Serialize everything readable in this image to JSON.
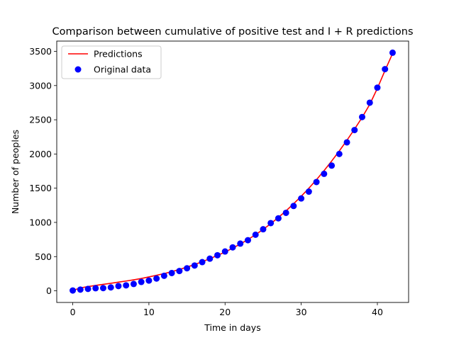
{
  "chart_data": {
    "type": "line+scatter",
    "title": "Comparison between cumulative of positive test and I + R predictions",
    "xlabel": "Time in days",
    "ylabel": "Number of peoples",
    "xlim": [
      -2.1,
      44.1
    ],
    "ylim": [
      -170,
      3650
    ],
    "xticks": [
      0,
      10,
      20,
      30,
      40
    ],
    "yticks": [
      0,
      500,
      1000,
      1500,
      2000,
      2500,
      3000,
      3500
    ],
    "legend": {
      "placement": "top-left",
      "entries": [
        "Predictions",
        "Original data"
      ]
    },
    "grid": false,
    "series": [
      {
        "name": "Predictions",
        "kind": "line",
        "color": "#ff0000",
        "x": [
          0,
          1,
          2,
          3,
          4,
          5,
          6,
          7,
          8,
          9,
          10,
          11,
          12,
          13,
          14,
          15,
          16,
          17,
          18,
          19,
          20,
          21,
          22,
          23,
          24,
          25,
          26,
          27,
          28,
          29,
          30,
          31,
          32,
          33,
          34,
          35,
          36,
          37,
          38,
          39,
          40,
          41,
          42
        ],
        "y": [
          5,
          42,
          62,
          79,
          95,
          110,
          127,
          143,
          161,
          180,
          203,
          227,
          252,
          280,
          312,
          347,
          384,
          425,
          470,
          517,
          567,
          624,
          685,
          750,
          820,
          898,
          982,
          1072,
          1168,
          1272,
          1382,
          1499,
          1624,
          1757,
          1897,
          2044,
          2200,
          2363,
          2535,
          2725,
          2960,
          3220,
          3470
        ]
      },
      {
        "name": "Original data",
        "kind": "scatter",
        "color": "#0000ff",
        "x": [
          0,
          1,
          2,
          3,
          4,
          5,
          6,
          7,
          8,
          9,
          10,
          11,
          12,
          13,
          14,
          15,
          16,
          17,
          18,
          19,
          20,
          21,
          22,
          23,
          24,
          25,
          26,
          27,
          28,
          29,
          30,
          31,
          32,
          33,
          34,
          35,
          36,
          37,
          38,
          39,
          40,
          41,
          42
        ],
        "y": [
          5,
          18,
          28,
          38,
          40,
          50,
          70,
          80,
          100,
          130,
          150,
          180,
          220,
          260,
          290,
          330,
          370,
          420,
          470,
          520,
          575,
          635,
          690,
          740,
          820,
          900,
          990,
          1060,
          1140,
          1240,
          1350,
          1450,
          1590,
          1710,
          1830,
          2000,
          2170,
          2350,
          2540,
          2750,
          2970,
          3240,
          3480
        ]
      }
    ]
  },
  "colors": {
    "predictions": "#ff0000",
    "original_data": "#0000ff",
    "axes": "#000000",
    "legend_border": "#cccccc"
  }
}
